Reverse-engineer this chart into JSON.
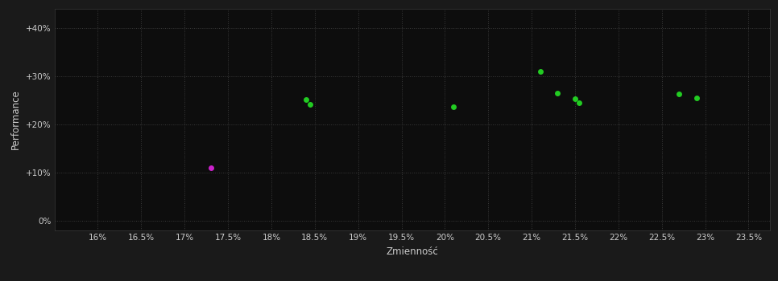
{
  "background_color": "#1a1a1a",
  "plot_bg_color": "#0d0d0d",
  "grid_color": "#3a3a3a",
  "text_color": "#cccccc",
  "xlabel": "Zmienność",
  "ylabel": "Performance",
  "xlim": [
    0.155,
    0.2375
  ],
  "ylim": [
    -0.02,
    0.44
  ],
  "xticks": [
    0.16,
    0.165,
    0.17,
    0.175,
    0.18,
    0.185,
    0.19,
    0.195,
    0.2,
    0.205,
    0.21,
    0.215,
    0.22,
    0.225,
    0.23,
    0.235
  ],
  "xtick_labels": [
    "16%",
    "16.5%",
    "17%",
    "17.5%",
    "18%",
    "18.5%",
    "19%",
    "19.5%",
    "20%",
    "20.5%",
    "21%",
    "21.5%",
    "22%",
    "22.5%",
    "23%",
    "23.5%"
  ],
  "yticks": [
    0.0,
    0.1,
    0.2,
    0.3,
    0.4
  ],
  "ytick_labels": [
    "0%",
    "+10%",
    "+20%",
    "+30%",
    "+40%"
  ],
  "points_green": [
    [
      0.184,
      0.252
    ],
    [
      0.1845,
      0.242
    ],
    [
      0.201,
      0.237
    ],
    [
      0.211,
      0.31
    ],
    [
      0.213,
      0.265
    ],
    [
      0.215,
      0.253
    ],
    [
      0.2155,
      0.244
    ],
    [
      0.227,
      0.263
    ],
    [
      0.229,
      0.255
    ]
  ],
  "points_magenta": [
    [
      0.173,
      0.11
    ]
  ],
  "green_color": "#22cc22",
  "magenta_color": "#cc22cc",
  "marker_size": 5
}
